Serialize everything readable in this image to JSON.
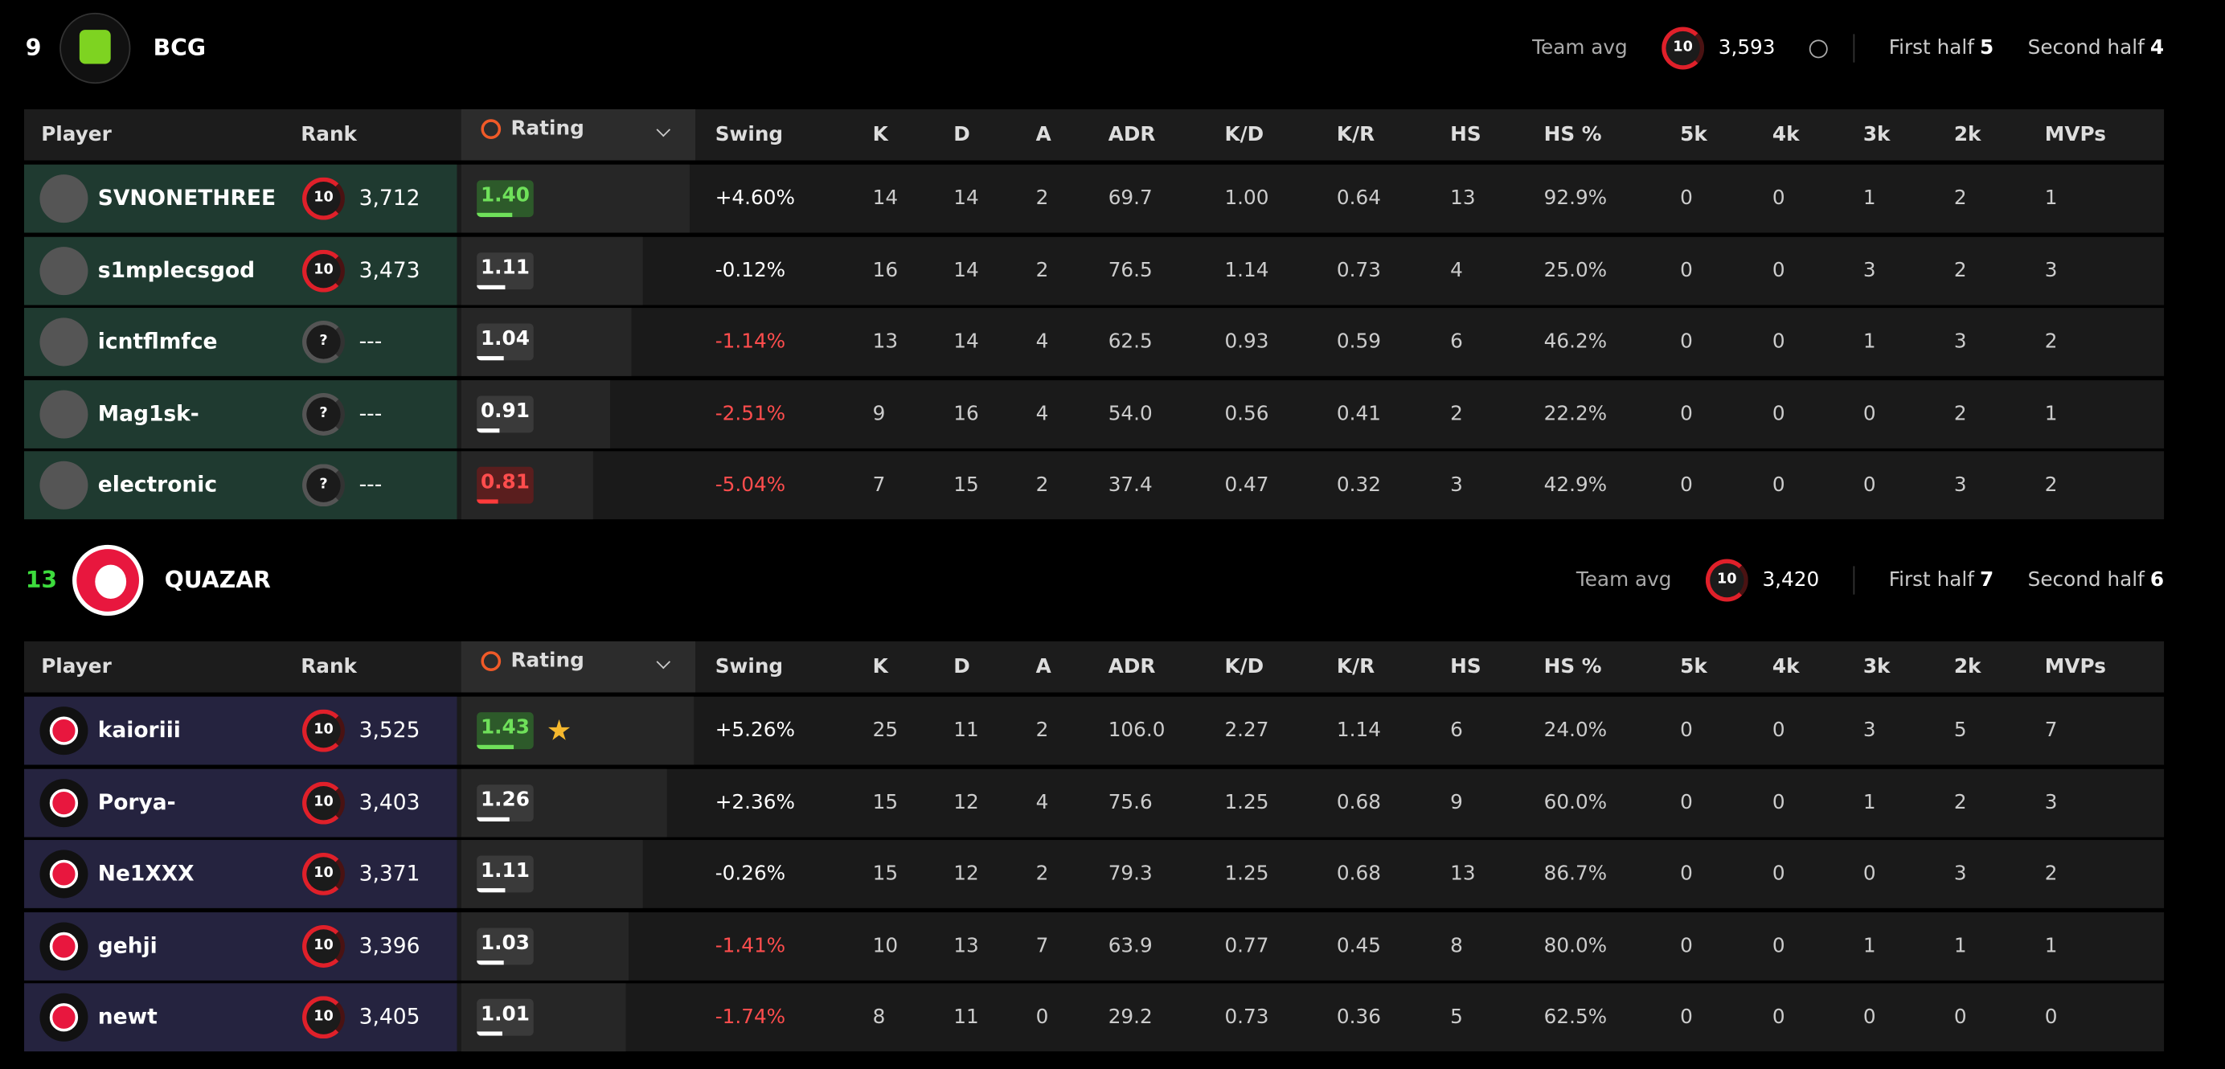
{
  "columns": [
    "Player",
    "Rank",
    "Rating",
    "Swing",
    "K",
    "D",
    "A",
    "ADR",
    "K/D",
    "K/R",
    "HS",
    "HS %",
    "5k",
    "4k",
    "3k",
    "2k",
    "MVPs"
  ],
  "teams": [
    {
      "score": "9",
      "name": "BCG",
      "team_avg_label": "Team avg",
      "team_avg_rank": "10",
      "team_avg": "3,593",
      "first_half_label": "First half",
      "first_half": "5",
      "second_half_label": "Second half",
      "second_half": "4",
      "players": [
        {
          "player": "SVNONETHREE",
          "rank_level": "10",
          "rank": "3,712",
          "rating": "1.40",
          "swing": "+4.60%",
          "stats": [
            "14",
            "14",
            "2",
            "69.7",
            "1.00",
            "0.64",
            "13",
            "92.9%",
            "0",
            "0",
            "1",
            "2",
            "1"
          ]
        },
        {
          "player": "s1mplecsgod",
          "rank_level": "10",
          "rank": "3,473",
          "rating": "1.11",
          "swing": "-0.12%",
          "stats": [
            "16",
            "14",
            "2",
            "76.5",
            "1.14",
            "0.73",
            "4",
            "25.0%",
            "0",
            "0",
            "3",
            "2",
            "3"
          ]
        },
        {
          "player": "icntflmfce",
          "rank_level": "?",
          "rank": "---",
          "rating": "1.04",
          "swing": "-1.14%",
          "stats": [
            "13",
            "14",
            "4",
            "62.5",
            "0.93",
            "0.59",
            "6",
            "46.2%",
            "0",
            "0",
            "1",
            "3",
            "2"
          ]
        },
        {
          "player": "Mag1sk-",
          "rank_level": "?",
          "rank": "---",
          "rating": "0.91",
          "swing": "-2.51%",
          "stats": [
            "9",
            "16",
            "4",
            "54.0",
            "0.56",
            "0.41",
            "2",
            "22.2%",
            "0",
            "0",
            "0",
            "2",
            "1"
          ]
        },
        {
          "player": "electronic",
          "rank_level": "?",
          "rank": "---",
          "rating": "0.81",
          "swing": "-5.04%",
          "stats": [
            "7",
            "15",
            "2",
            "37.4",
            "0.47",
            "0.32",
            "3",
            "42.9%",
            "0",
            "0",
            "0",
            "3",
            "2"
          ]
        }
      ]
    },
    {
      "score": "13",
      "name": "QUAZAR",
      "team_avg_label": "Team avg",
      "team_avg_rank": "10",
      "team_avg": "3,420",
      "first_half_label": "First half",
      "first_half": "7",
      "second_half_label": "Second half",
      "second_half": "6",
      "players": [
        {
          "player": "kaioriii",
          "rank_level": "10",
          "rank": "3,525",
          "rating": "1.43",
          "swing": "+5.26%",
          "stats": [
            "25",
            "11",
            "2",
            "106.0",
            "2.27",
            "1.14",
            "6",
            "24.0%",
            "0",
            "0",
            "3",
            "5",
            "7"
          ]
        },
        {
          "player": "Porya-",
          "rank_level": "10",
          "rank": "3,403",
          "rating": "1.26",
          "swing": "+2.36%",
          "stats": [
            "15",
            "12",
            "4",
            "75.6",
            "1.25",
            "0.68",
            "9",
            "60.0%",
            "0",
            "0",
            "1",
            "2",
            "3"
          ]
        },
        {
          "player": "Ne1XXX",
          "rank_level": "10",
          "rank": "3,371",
          "rating": "1.11",
          "swing": "-0.26%",
          "stats": [
            "15",
            "12",
            "2",
            "79.3",
            "1.25",
            "0.68",
            "13",
            "86.7%",
            "0",
            "0",
            "0",
            "3",
            "2"
          ]
        },
        {
          "player": "gehji",
          "rank_level": "10",
          "rank": "3,396",
          "rating": "1.03",
          "swing": "-1.41%",
          "stats": [
            "10",
            "13",
            "7",
            "63.9",
            "0.77",
            "0.45",
            "8",
            "80.0%",
            "0",
            "0",
            "1",
            "1",
            "1"
          ]
        },
        {
          "player": "newt",
          "rank_level": "10",
          "rank": "3,405",
          "rating": "1.01",
          "swing": "-1.74%",
          "stats": [
            "8",
            "11",
            "0",
            "29.2",
            "0.73",
            "0.36",
            "5",
            "62.5%",
            "0",
            "0",
            "0",
            "0",
            "0"
          ]
        }
      ]
    }
  ]
}
